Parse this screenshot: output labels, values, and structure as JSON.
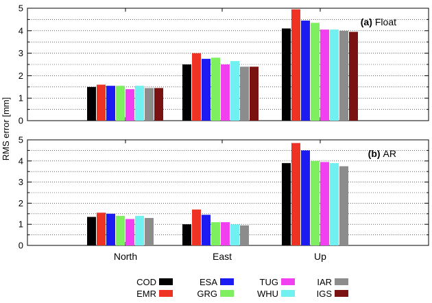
{
  "y_axis_label": "RMS error [mm]",
  "categories": [
    "North",
    "East",
    "Up"
  ],
  "y_ticks": [
    "0",
    "1",
    "2",
    "3",
    "4",
    "5"
  ],
  "series_colors": {
    "COD": "#000000",
    "EMR": "#ee3324",
    "ESA": "#1b1bf2",
    "GRG": "#7ef060",
    "TUG": "#f040f0",
    "WHU": "#70f0f0",
    "IAR": "#8c8c8c",
    "IGS": "#7a1212"
  },
  "legend_rows": [
    [
      "COD",
      "ESA",
      "TUG",
      "IAR"
    ],
    [
      "EMR",
      "GRG",
      "WHU",
      "IGS"
    ]
  ],
  "chart_data": [
    {
      "type": "bar",
      "panel_tag": "(a)",
      "panel_name": "Float",
      "categories": [
        "North",
        "East",
        "Up"
      ],
      "ylim": [
        0,
        5
      ],
      "ylabel": "RMS error [mm]",
      "grid": "horizontal dotted",
      "series": [
        {
          "name": "COD",
          "values": [
            1.5,
            2.5,
            4.1
          ]
        },
        {
          "name": "EMR",
          "values": [
            1.6,
            3.0,
            4.95
          ]
        },
        {
          "name": "ESA",
          "values": [
            1.55,
            2.75,
            4.45
          ]
        },
        {
          "name": "GRG",
          "values": [
            1.55,
            2.8,
            4.35
          ]
        },
        {
          "name": "TUG",
          "values": [
            1.4,
            2.5,
            4.05
          ]
        },
        {
          "name": "WHU",
          "values": [
            1.55,
            2.65,
            4.05
          ]
        },
        {
          "name": "IAR",
          "values": [
            1.45,
            2.4,
            4.0
          ]
        },
        {
          "name": "IGS",
          "values": [
            1.45,
            2.4,
            3.95
          ]
        }
      ]
    },
    {
      "type": "bar",
      "panel_tag": "(b)",
      "panel_name": "AR",
      "categories": [
        "North",
        "East",
        "Up"
      ],
      "ylim": [
        0,
        5
      ],
      "ylabel": "RMS error [mm]",
      "grid": "horizontal dotted",
      "series": [
        {
          "name": "COD",
          "values": [
            1.35,
            1.0,
            3.9
          ]
        },
        {
          "name": "EMR",
          "values": [
            1.55,
            1.7,
            4.85
          ]
        },
        {
          "name": "ESA",
          "values": [
            1.5,
            1.45,
            4.5
          ]
        },
        {
          "name": "GRG",
          "values": [
            1.4,
            1.1,
            4.0
          ]
        },
        {
          "name": "TUG",
          "values": [
            1.25,
            1.1,
            3.95
          ]
        },
        {
          "name": "WHU",
          "values": [
            1.4,
            1.0,
            3.9
          ]
        },
        {
          "name": "IAR",
          "values": [
            1.3,
            0.95,
            3.75
          ]
        }
      ]
    }
  ]
}
